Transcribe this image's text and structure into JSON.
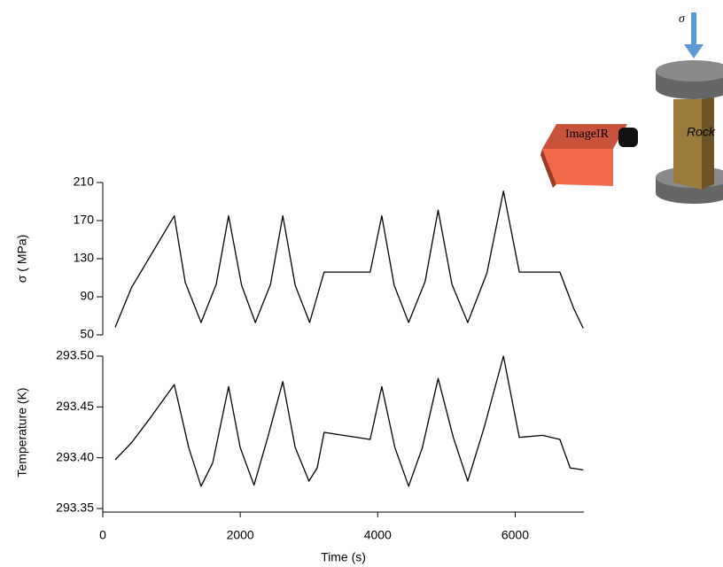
{
  "chart_data": [
    {
      "type": "line",
      "ylabel": "σ ( MPa)",
      "ylim": [
        50,
        210
      ],
      "yticks": [
        50,
        90,
        130,
        170,
        210
      ],
      "xlim": [
        0,
        7000
      ],
      "x": [
        180,
        420,
        1040,
        1200,
        1430,
        1650,
        1830,
        2020,
        2220,
        2440,
        2620,
        2800,
        3010,
        3220,
        3890,
        4060,
        4240,
        4450,
        4690,
        4880,
        5080,
        5310,
        5590,
        5830,
        6060,
        6650,
        6850,
        6990
      ],
      "series": [
        {
          "color": "#000000",
          "values": [
            58,
            100,
            175,
            105,
            63,
            103,
            175,
            102,
            63,
            103,
            175,
            102,
            63,
            116,
            116,
            175,
            102,
            63,
            106,
            181,
            103,
            63,
            115,
            201,
            116,
            116,
            78,
            57
          ]
        }
      ]
    },
    {
      "type": "line",
      "ylabel": "Temperature (K)",
      "xlabel": "Time (s)",
      "xlim": [
        0,
        7000
      ],
      "xticks": [
        0,
        2000,
        4000,
        6000
      ],
      "ylim": [
        293.35,
        293.5
      ],
      "yticks": [
        293.35,
        {
          "value": 293.4,
          "label": "293.40"
        },
        293.45,
        {
          "value": 293.5,
          "label": "293.50"
        }
      ],
      "x": [
        180,
        420,
        700,
        1040,
        1250,
        1430,
        1600,
        1830,
        2000,
        2200,
        2400,
        2620,
        2800,
        3000,
        3120,
        3220,
        3500,
        3890,
        4060,
        4250,
        4450,
        4650,
        4880,
        5100,
        5310,
        5550,
        5830,
        6060,
        6400,
        6650,
        6800,
        6990
      ],
      "series": [
        {
          "color": "#000000",
          "values": [
            293.398,
            293.415,
            293.44,
            293.472,
            293.41,
            293.372,
            293.395,
            293.47,
            293.41,
            293.373,
            293.42,
            293.475,
            293.41,
            293.377,
            293.39,
            293.425,
            293.422,
            293.418,
            293.47,
            293.41,
            293.372,
            293.41,
            293.478,
            293.42,
            293.377,
            293.43,
            293.5,
            293.42,
            293.422,
            293.418,
            293.39,
            293.388
          ]
        }
      ]
    }
  ],
  "illustration": {
    "stress_symbol": "σ",
    "camera_label": "ImageIR",
    "specimen_label": "Rock"
  }
}
